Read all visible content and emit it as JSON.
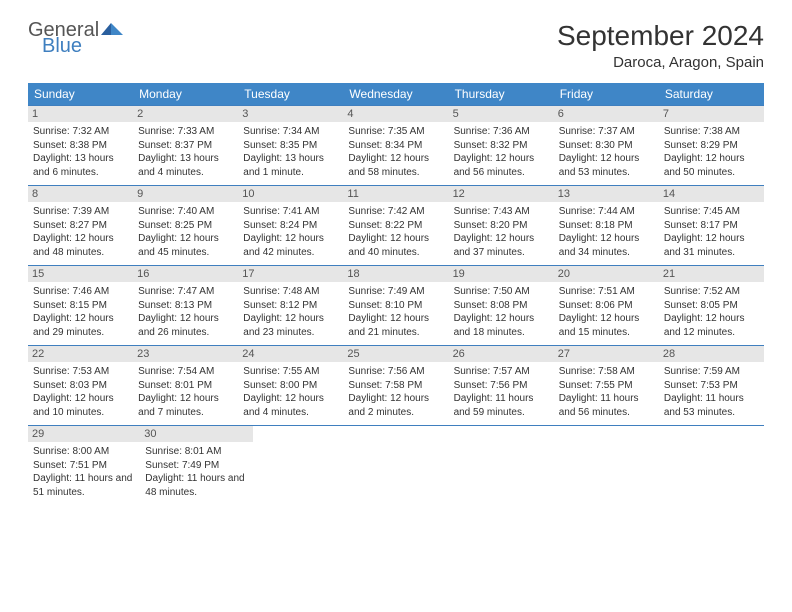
{
  "logo": {
    "general": "General",
    "blue": "Blue"
  },
  "title": "September 2024",
  "location": "Daroca, Aragon, Spain",
  "day_headers": [
    "Sunday",
    "Monday",
    "Tuesday",
    "Wednesday",
    "Thursday",
    "Friday",
    "Saturday"
  ],
  "colors": {
    "header_bg": "#3f86c7",
    "header_text": "#ffffff",
    "daynum_bg": "#e6e6e6",
    "daynum_text": "#555555",
    "border": "#3f7fbf",
    "body_text": "#333333",
    "logo_gray": "#555555",
    "logo_blue": "#3f7fbf"
  },
  "weeks": [
    [
      {
        "n": "1",
        "sunrise": "7:32 AM",
        "sunset": "8:38 PM",
        "daylight": "13 hours and 6 minutes."
      },
      {
        "n": "2",
        "sunrise": "7:33 AM",
        "sunset": "8:37 PM",
        "daylight": "13 hours and 4 minutes."
      },
      {
        "n": "3",
        "sunrise": "7:34 AM",
        "sunset": "8:35 PM",
        "daylight": "13 hours and 1 minute."
      },
      {
        "n": "4",
        "sunrise": "7:35 AM",
        "sunset": "8:34 PM",
        "daylight": "12 hours and 58 minutes."
      },
      {
        "n": "5",
        "sunrise": "7:36 AM",
        "sunset": "8:32 PM",
        "daylight": "12 hours and 56 minutes."
      },
      {
        "n": "6",
        "sunrise": "7:37 AM",
        "sunset": "8:30 PM",
        "daylight": "12 hours and 53 minutes."
      },
      {
        "n": "7",
        "sunrise": "7:38 AM",
        "sunset": "8:29 PM",
        "daylight": "12 hours and 50 minutes."
      }
    ],
    [
      {
        "n": "8",
        "sunrise": "7:39 AM",
        "sunset": "8:27 PM",
        "daylight": "12 hours and 48 minutes."
      },
      {
        "n": "9",
        "sunrise": "7:40 AM",
        "sunset": "8:25 PM",
        "daylight": "12 hours and 45 minutes."
      },
      {
        "n": "10",
        "sunrise": "7:41 AM",
        "sunset": "8:24 PM",
        "daylight": "12 hours and 42 minutes."
      },
      {
        "n": "11",
        "sunrise": "7:42 AM",
        "sunset": "8:22 PM",
        "daylight": "12 hours and 40 minutes."
      },
      {
        "n": "12",
        "sunrise": "7:43 AM",
        "sunset": "8:20 PM",
        "daylight": "12 hours and 37 minutes."
      },
      {
        "n": "13",
        "sunrise": "7:44 AM",
        "sunset": "8:18 PM",
        "daylight": "12 hours and 34 minutes."
      },
      {
        "n": "14",
        "sunrise": "7:45 AM",
        "sunset": "8:17 PM",
        "daylight": "12 hours and 31 minutes."
      }
    ],
    [
      {
        "n": "15",
        "sunrise": "7:46 AM",
        "sunset": "8:15 PM",
        "daylight": "12 hours and 29 minutes."
      },
      {
        "n": "16",
        "sunrise": "7:47 AM",
        "sunset": "8:13 PM",
        "daylight": "12 hours and 26 minutes."
      },
      {
        "n": "17",
        "sunrise": "7:48 AM",
        "sunset": "8:12 PM",
        "daylight": "12 hours and 23 minutes."
      },
      {
        "n": "18",
        "sunrise": "7:49 AM",
        "sunset": "8:10 PM",
        "daylight": "12 hours and 21 minutes."
      },
      {
        "n": "19",
        "sunrise": "7:50 AM",
        "sunset": "8:08 PM",
        "daylight": "12 hours and 18 minutes."
      },
      {
        "n": "20",
        "sunrise": "7:51 AM",
        "sunset": "8:06 PM",
        "daylight": "12 hours and 15 minutes."
      },
      {
        "n": "21",
        "sunrise": "7:52 AM",
        "sunset": "8:05 PM",
        "daylight": "12 hours and 12 minutes."
      }
    ],
    [
      {
        "n": "22",
        "sunrise": "7:53 AM",
        "sunset": "8:03 PM",
        "daylight": "12 hours and 10 minutes."
      },
      {
        "n": "23",
        "sunrise": "7:54 AM",
        "sunset": "8:01 PM",
        "daylight": "12 hours and 7 minutes."
      },
      {
        "n": "24",
        "sunrise": "7:55 AM",
        "sunset": "8:00 PM",
        "daylight": "12 hours and 4 minutes."
      },
      {
        "n": "25",
        "sunrise": "7:56 AM",
        "sunset": "7:58 PM",
        "daylight": "12 hours and 2 minutes."
      },
      {
        "n": "26",
        "sunrise": "7:57 AM",
        "sunset": "7:56 PM",
        "daylight": "11 hours and 59 minutes."
      },
      {
        "n": "27",
        "sunrise": "7:58 AM",
        "sunset": "7:55 PM",
        "daylight": "11 hours and 56 minutes."
      },
      {
        "n": "28",
        "sunrise": "7:59 AM",
        "sunset": "7:53 PM",
        "daylight": "11 hours and 53 minutes."
      }
    ],
    [
      {
        "n": "29",
        "sunrise": "8:00 AM",
        "sunset": "7:51 PM",
        "daylight": "11 hours and 51 minutes."
      },
      {
        "n": "30",
        "sunrise": "8:01 AM",
        "sunset": "7:49 PM",
        "daylight": "11 hours and 48 minutes."
      },
      null,
      null,
      null,
      null,
      null
    ]
  ]
}
